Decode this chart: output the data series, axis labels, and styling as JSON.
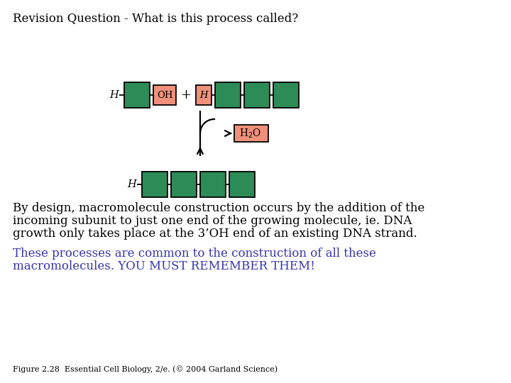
{
  "title": "Revision Question - What is this process called?",
  "title_fontsize": 12,
  "title_color": "#000000",
  "background_color": "#ffffff",
  "green_color": "#2d8b57",
  "pink_color": "#f0907a",
  "text_color_black": "#000000",
  "text_color_blue": "#3535aa",
  "body_text1": "By design, macromolecule construction occurs by the addition of the",
  "body_text2": "incoming subunit to just one end of the growing molecule, ie. DNA",
  "body_text3": "growth only takes place at the 3’OH end of an existing DNA strand.",
  "blue_text1": "These processes are common to the construction of all these",
  "blue_text2": "macromolecules. YOU MUST REMEMBER THEM!",
  "caption": "Figure 2.28  Essential Cell Biology, 2/e. (© 2004 Garland Science)",
  "body_fontsize": 12,
  "blue_fontsize": 12,
  "caption_fontsize": 8
}
